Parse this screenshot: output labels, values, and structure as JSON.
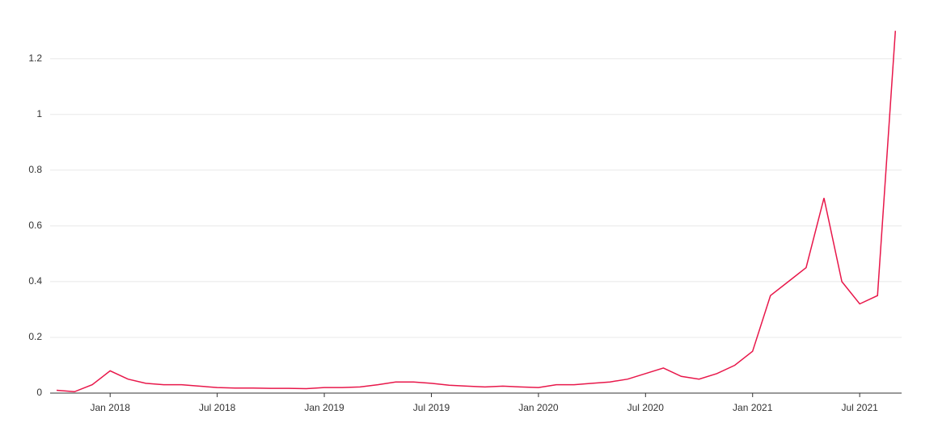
{
  "chart_data": {
    "type": "line",
    "x": [
      "Oct 2017",
      "Nov 2017",
      "Dec 2017",
      "Jan 2018",
      "Feb 2018",
      "Mar 2018",
      "Apr 2018",
      "May 2018",
      "Jun 2018",
      "Jul 2018",
      "Aug 2018",
      "Sep 2018",
      "Oct 2018",
      "Nov 2018",
      "Dec 2018",
      "Jan 2019",
      "Feb 2019",
      "Mar 2019",
      "Apr 2019",
      "May 2019",
      "Jun 2019",
      "Jul 2019",
      "Aug 2019",
      "Sep 2019",
      "Oct 2019",
      "Nov 2019",
      "Dec 2019",
      "Jan 2020",
      "Feb 2020",
      "Mar 2020",
      "Apr 2020",
      "May 2020",
      "Jun 2020",
      "Jul 2020",
      "Aug 2020",
      "Sep 2020",
      "Oct 2020",
      "Nov 2020",
      "Dec 2020",
      "Jan 2021",
      "Feb 2021",
      "Mar 2021",
      "Apr 2021",
      "May 2021",
      "Jun 2021",
      "Jul 2021",
      "Aug 2021",
      "Sep 2021"
    ],
    "series": [
      {
        "color": "#e8174a",
        "values": [
          0.01,
          0.005,
          0.03,
          0.08,
          0.05,
          0.035,
          0.03,
          0.03,
          0.025,
          0.02,
          0.018,
          0.018,
          0.017,
          0.017,
          0.016,
          0.02,
          0.02,
          0.022,
          0.03,
          0.04,
          0.04,
          0.035,
          0.028,
          0.025,
          0.022,
          0.025,
          0.022,
          0.02,
          0.03,
          0.03,
          0.035,
          0.04,
          0.05,
          0.07,
          0.09,
          0.06,
          0.05,
          0.07,
          0.1,
          0.15,
          0.35,
          0.4,
          0.45,
          0.7,
          0.4,
          0.32,
          0.35,
          1.3
        ]
      }
    ],
    "xticks": [
      "Jan 2018",
      "Jul 2018",
      "Jan 2019",
      "Jul 2019",
      "Jan 2020",
      "Jul 2020",
      "Jan 2021",
      "Jul 2021"
    ],
    "ylim": [
      0,
      1.37
    ],
    "yticks": [
      0,
      0.2,
      0.4,
      0.6,
      0.8,
      1,
      1.2
    ],
    "grid": true
  }
}
